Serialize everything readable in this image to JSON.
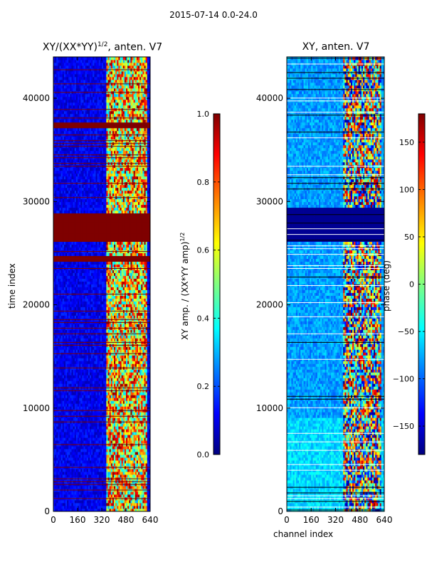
{
  "figure": {
    "suptitle": "2015-07-14 0.0-24.0"
  },
  "chart_data": [
    {
      "type": "heatmap",
      "title_main": "XY/(XX*YY)",
      "title_exp": "1/2",
      "title_rest": ", anten. V7",
      "xlabel": "",
      "ylabel": "time index",
      "xlim": [
        0,
        640
      ],
      "ylim": [
        0,
        44000
      ],
      "xticks": [
        0,
        160,
        320,
        480,
        640
      ],
      "yticks": [
        0,
        10000,
        20000,
        30000,
        40000
      ],
      "colorbar": {
        "label": "XY amp. / (XX*YY amp)",
        "label_exp": "1/2",
        "range": [
          0.0,
          1.0
        ],
        "ticks": [
          "0.0",
          "0.2",
          "0.4",
          "0.6",
          "0.8",
          "1.0"
        ],
        "colormap": "jet"
      }
    },
    {
      "type": "heatmap",
      "title_main": "XY, anten. V7",
      "xlabel": "channel index",
      "ylabel": "",
      "xlim": [
        0,
        640
      ],
      "ylim": [
        0,
        44000
      ],
      "xticks": [
        0,
        160,
        320,
        480,
        640
      ],
      "yticks": [
        0,
        10000,
        20000,
        30000,
        40000
      ],
      "colorbar": {
        "label": "phase (deg)",
        "range": [
          -180,
          180
        ],
        "ticks": [
          "−150",
          "−100",
          "−50",
          "0",
          "50",
          "100",
          "150"
        ],
        "colormap": "jet"
      }
    }
  ],
  "colors": {
    "jet": [
      "#00007f",
      "#0000ff",
      "#0080ff",
      "#00ffff",
      "#80ff80",
      "#ffff00",
      "#ff8000",
      "#ff0000",
      "#7f0000"
    ],
    "saturated_band": "#7f0000",
    "phase_band": "#00007f"
  }
}
